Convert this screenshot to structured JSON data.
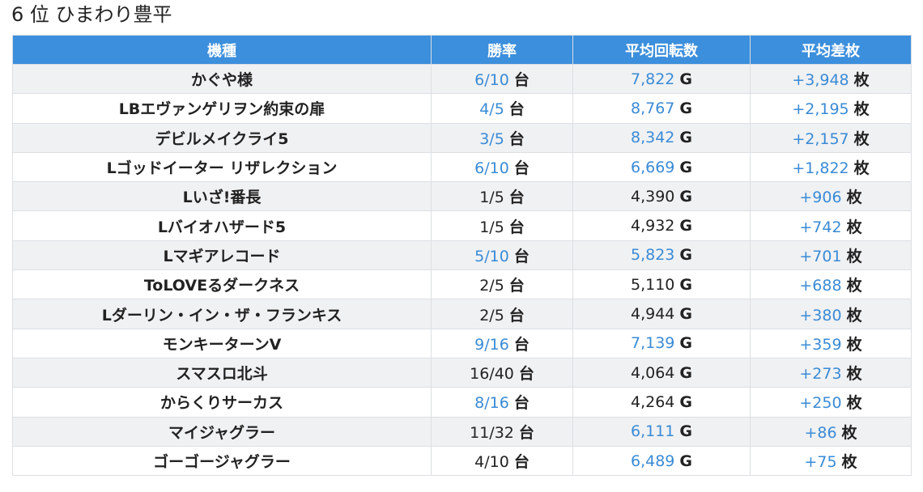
{
  "title": "6 位 ひまわり豊平",
  "columns": [
    "機種",
    "勝率",
    "平均回転数",
    "平均差枚"
  ],
  "units": {
    "win": "台",
    "spin": "G",
    "diff": "枚"
  },
  "colors": {
    "header_bg": "#3c8fdc",
    "highlight": "#3a8bd6",
    "row_stripe": "#f0f1f3"
  },
  "rows": [
    {
      "name": "かぐや様",
      "win": "6/10",
      "win_hl": true,
      "spin": "7,822",
      "spin_hl": true,
      "diff": "+3,948"
    },
    {
      "name": "LBエヴァンゲリヲン約束の扉",
      "win": "4/5",
      "win_hl": true,
      "spin": "8,767",
      "spin_hl": true,
      "diff": "+2,195"
    },
    {
      "name": "デビルメイクライ5",
      "win": "3/5",
      "win_hl": true,
      "spin": "8,342",
      "spin_hl": true,
      "diff": "+2,157"
    },
    {
      "name": "Lゴッドイーター リザレクション",
      "win": "6/10",
      "win_hl": true,
      "spin": "6,669",
      "spin_hl": true,
      "diff": "+1,822"
    },
    {
      "name": "Lいざ!番長",
      "win": "1/5",
      "win_hl": false,
      "spin": "4,390",
      "spin_hl": false,
      "diff": "+906"
    },
    {
      "name": "Lバイオハザード5",
      "win": "1/5",
      "win_hl": false,
      "spin": "4,932",
      "spin_hl": false,
      "diff": "+742"
    },
    {
      "name": "Lマギアレコード",
      "win": "5/10",
      "win_hl": true,
      "spin": "5,823",
      "spin_hl": true,
      "diff": "+701"
    },
    {
      "name": "ToLOVEるダークネス",
      "win": "2/5",
      "win_hl": false,
      "spin": "5,110",
      "spin_hl": false,
      "diff": "+688"
    },
    {
      "name": "Lダーリン・イン・ザ・フランキス",
      "win": "2/5",
      "win_hl": false,
      "spin": "4,944",
      "spin_hl": false,
      "diff": "+380"
    },
    {
      "name": "モンキーターンV",
      "win": "9/16",
      "win_hl": true,
      "spin": "7,139",
      "spin_hl": true,
      "diff": "+359"
    },
    {
      "name": "スマスロ北斗",
      "win": "16/40",
      "win_hl": false,
      "spin": "4,064",
      "spin_hl": false,
      "diff": "+273"
    },
    {
      "name": "からくりサーカス",
      "win": "8/16",
      "win_hl": true,
      "spin": "4,264",
      "spin_hl": false,
      "diff": "+250"
    },
    {
      "name": "マイジャグラー",
      "win": "11/32",
      "win_hl": false,
      "spin": "6,111",
      "spin_hl": true,
      "diff": "+86"
    },
    {
      "name": "ゴーゴージャグラー",
      "win": "4/10",
      "win_hl": false,
      "spin": "6,489",
      "spin_hl": true,
      "diff": "+75"
    }
  ]
}
